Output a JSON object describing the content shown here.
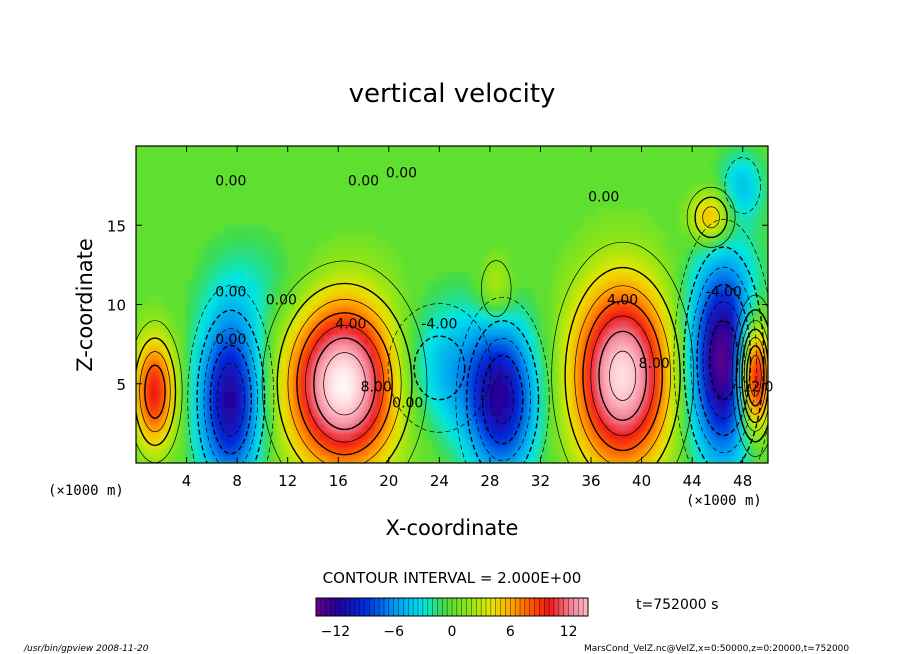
{
  "chart_data": {
    "type": "heatmap",
    "title": "vertical velocity",
    "xlabel": "X-coordinate",
    "ylabel": "Z-coordinate",
    "x_unit_label": "(×1000 m)",
    "y_unit_label": "(×1000 m)",
    "xlim": [
      0,
      50
    ],
    "ylim": [
      0,
      20
    ],
    "xticks": [
      4,
      8,
      12,
      16,
      20,
      24,
      28,
      32,
      36,
      40,
      44,
      48
    ],
    "yticks": [
      5,
      10,
      15
    ],
    "contour_interval_text": "CONTOUR INTERVAL = 2.000E+00",
    "time_text": "t=752000 s",
    "colorbar": {
      "range": [
        -14,
        14
      ],
      "ticks": [
        -12,
        -6,
        0,
        6,
        12
      ]
    },
    "cells": [
      {
        "x": 1.5,
        "z": 4.5,
        "value": 10,
        "sx": 1.2,
        "sz": 2.5
      },
      {
        "x": 7.5,
        "z": 4.0,
        "value": -12,
        "sx": 1.8,
        "sz": 3.8
      },
      {
        "x": 16.5,
        "z": 5.0,
        "value": 16,
        "sx": 3.2,
        "sz": 3.8
      },
      {
        "x": 24.0,
        "z": 6.0,
        "value": -5,
        "sx": 3.0,
        "sz": 3.0
      },
      {
        "x": 29.0,
        "z": 4.0,
        "value": -11,
        "sx": 2.0,
        "sz": 3.5
      },
      {
        "x": 38.5,
        "z": 5.5,
        "value": 15,
        "sx": 2.8,
        "sz": 4.2
      },
      {
        "x": 46.5,
        "z": 6.5,
        "value": -14,
        "sx": 2.0,
        "sz": 4.5
      },
      {
        "x": 49.0,
        "z": 5.5,
        "value": 16,
        "sx": 0.9,
        "sz": 2.5
      },
      {
        "x": 45.5,
        "z": 15.5,
        "value": 7,
        "sx": 1.2,
        "sz": 1.2
      },
      {
        "x": 48.0,
        "z": 17.5,
        "value": -4,
        "sx": 1.2,
        "sz": 1.5
      },
      {
        "x": 10.0,
        "z": 11.0,
        "value": -2,
        "sx": 3.0,
        "sz": 2.5
      },
      {
        "x": 28.5,
        "z": 11.0,
        "value": 4,
        "sx": 1.0,
        "sz": 1.5
      }
    ],
    "contour_labels": [
      {
        "text": "0.00",
        "x": 7.5,
        "z": 17.5
      },
      {
        "text": "0.00",
        "x": 18.0,
        "z": 17.5
      },
      {
        "text": "0.00",
        "x": 21.0,
        "z": 18.0
      },
      {
        "text": "0.00",
        "x": 37.0,
        "z": 16.5
      },
      {
        "text": "0.00",
        "x": 7.5,
        "z": 10.5
      },
      {
        "text": "0.00",
        "x": 11.5,
        "z": 10.0
      },
      {
        "text": "0.00",
        "x": 7.5,
        "z": 7.5
      },
      {
        "text": "0.00",
        "x": 21.5,
        "z": 3.5
      },
      {
        "text": "4.00",
        "x": 17.0,
        "z": 8.5
      },
      {
        "text": "8.00",
        "x": 19.0,
        "z": 4.5
      },
      {
        "text": "-4.00",
        "x": 24.0,
        "z": 8.5
      },
      {
        "text": "4.00",
        "x": 38.5,
        "z": 10.0
      },
      {
        "text": "8.00",
        "x": 41.0,
        "z": 6.0
      },
      {
        "text": "-12.0",
        "x": 49.0,
        "z": 4.5
      },
      {
        "text": "-4.00",
        "x": 46.5,
        "z": 10.5
      }
    ]
  },
  "footer": {
    "left": "/usr/bin/gpview   2008-11-20",
    "right": "MarsCond_VelZ.nc@VelZ,x=0:50000,z=0:20000,t=752000"
  }
}
